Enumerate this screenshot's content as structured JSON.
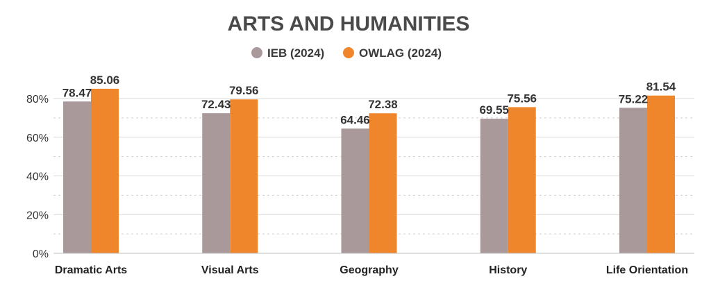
{
  "chart_data": {
    "type": "bar",
    "title": "ARTS AND HUMANITIES",
    "categories": [
      "Dramatic Arts",
      "Visual Arts",
      "Geography",
      "History",
      "Life Orientation"
    ],
    "series": [
      {
        "name": "IEB (2024)",
        "color": "#a9999b",
        "values": [
          78.47,
          72.43,
          64.46,
          69.55,
          75.22
        ]
      },
      {
        "name": "OWLAG (2024)",
        "color": "#f0862c",
        "values": [
          85.06,
          79.56,
          72.38,
          75.56,
          81.54
        ]
      }
    ],
    "data_labels": [
      [
        "78.47",
        "72.43",
        "64.46",
        "69.55",
        "75.22"
      ],
      [
        "85.06",
        "79.56",
        "72.38",
        "75.56",
        "81.54"
      ]
    ],
    "ylim": [
      0,
      80
    ],
    "yticks": [
      0,
      20,
      40,
      60,
      80
    ],
    "ytick_labels": [
      "0%",
      "20%",
      "40%",
      "60%",
      "80%"
    ],
    "xlabel": "",
    "ylabel": "",
    "grid": true,
    "legend_position": "top-center"
  }
}
